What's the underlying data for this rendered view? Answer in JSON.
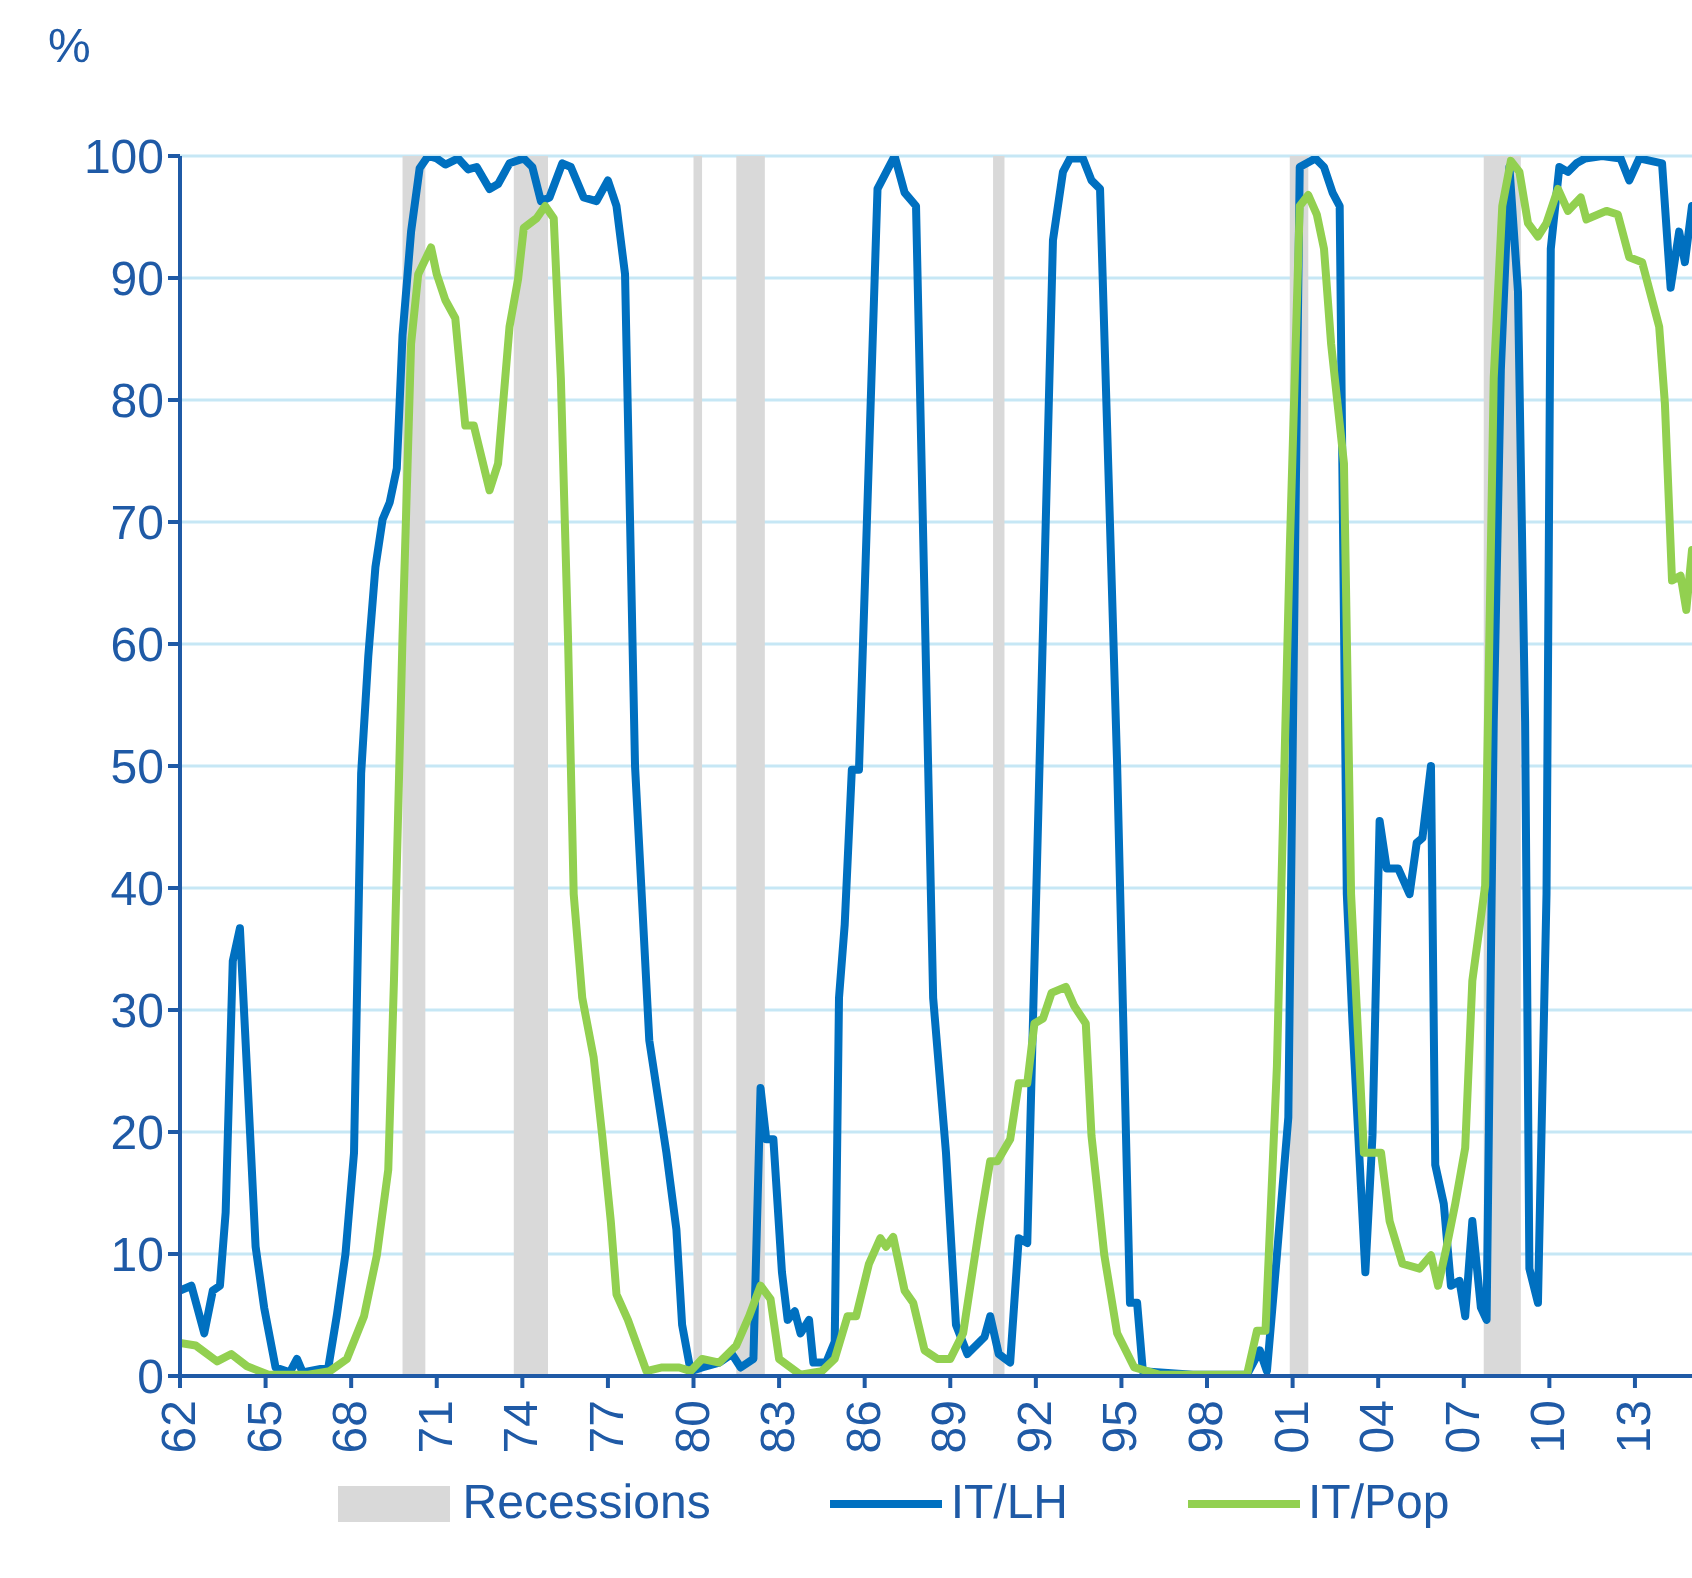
{
  "chart_data": {
    "type": "line",
    "ylabel": "%",
    "xlim": [
      1962,
      2015
    ],
    "xticks": [
      {
        "value": 1962,
        "label": "62"
      },
      {
        "value": 1965,
        "label": "65"
      },
      {
        "value": 1968,
        "label": "68"
      },
      {
        "value": 1971,
        "label": "71"
      },
      {
        "value": 1974,
        "label": "74"
      },
      {
        "value": 1977,
        "label": "77"
      },
      {
        "value": 1980,
        "label": "80"
      },
      {
        "value": 1983,
        "label": "83"
      },
      {
        "value": 1986,
        "label": "86"
      },
      {
        "value": 1989,
        "label": "89"
      },
      {
        "value": 1992,
        "label": "92"
      },
      {
        "value": 1995,
        "label": "95"
      },
      {
        "value": 1998,
        "label": "98"
      },
      {
        "value": 2001,
        "label": "01"
      },
      {
        "value": 2004,
        "label": "04"
      },
      {
        "value": 2007,
        "label": "07"
      },
      {
        "value": 2010,
        "label": "10"
      },
      {
        "value": 2013,
        "label": "13"
      }
    ],
    "ylim": [
      0,
      100
    ],
    "yticks": [
      0,
      10,
      20,
      30,
      40,
      50,
      60,
      70,
      80,
      90,
      100
    ],
    "grid": "y",
    "legend": "bottom",
    "marker": "none",
    "line_style": "solid",
    "bands": [
      {
        "axis": "x",
        "from": 1969.8,
        "to": 1970.6,
        "label": "Recessions",
        "color": "#d9d9d9"
      },
      {
        "axis": "x",
        "from": 1973.7,
        "to": 1974.9,
        "color": "#d9d9d9"
      },
      {
        "axis": "x",
        "from": 1980.0,
        "to": 1980.3,
        "color": "#d9d9d9"
      },
      {
        "axis": "x",
        "from": 1981.5,
        "to": 1982.5,
        "color": "#d9d9d9"
      },
      {
        "axis": "x",
        "from": 1990.5,
        "to": 1990.9,
        "color": "#d9d9d9"
      },
      {
        "axis": "x",
        "from": 2000.9,
        "to": 2001.55,
        "color": "#d9d9d9"
      },
      {
        "axis": "x",
        "from": 2007.7,
        "to": 2009.0,
        "color": "#d9d9d9"
      }
    ],
    "series": [
      {
        "name": "IT/LH",
        "color": "#0070c0",
        "x": [
          1962.0,
          1962.4,
          1962.85,
          1963.15,
          1963.4,
          1963.6,
          1963.85,
          1964.1,
          1964.35,
          1964.65,
          1964.95,
          1965.35,
          1965.85,
          1966.1,
          1966.3,
          1967.2,
          1967.5,
          1967.8,
          1968.1,
          1968.35,
          1968.6,
          1968.85,
          1969.1,
          1969.35,
          1969.6,
          1969.8,
          1970.1,
          1970.4,
          1970.7,
          1971.0,
          1971.3,
          1971.75,
          1972.1,
          1972.4,
          1972.85,
          1973.15,
          1973.55,
          1974.05,
          1974.35,
          1974.65,
          1974.95,
          1975.4,
          1975.7,
          1976.15,
          1976.6,
          1977.0,
          1977.3,
          1977.6,
          1977.95,
          1978.45,
          1979.05,
          1979.4,
          1979.6,
          1979.9,
          1980.3,
          1980.9,
          1981.35,
          1981.65,
          1982.1,
          1982.35,
          1982.55,
          1982.8,
          1983.1,
          1983.3,
          1983.55,
          1983.75,
          1984.05,
          1984.2,
          1984.65,
          1984.95,
          1985.1,
          1985.3,
          1985.55,
          1985.8,
          1986.45,
          1987.05,
          1987.4,
          1987.8,
          1988.4,
          1988.85,
          1989.2,
          1989.6,
          1990.2,
          1990.4,
          1990.7,
          1991.1,
          1991.4,
          1991.7,
          1992.6,
          1992.95,
          1993.2,
          1993.65,
          1993.95,
          1994.25,
          1994.85,
          1995.3,
          1995.55,
          1995.75,
          1997.5,
          1999.4,
          1999.85,
          2000.1,
          2000.45,
          2000.85,
          2001.05,
          2001.25,
          2001.8,
          2002.1,
          2002.4,
          2002.65,
          2002.9,
          2003.1,
          2003.55,
          2003.8,
          2004.05,
          2004.3,
          2004.7,
          2005.1,
          2005.35,
          2005.55,
          2005.85,
          2006.0,
          2006.3,
          2006.55,
          2006.85,
          2007.05,
          2007.3,
          2007.6,
          2007.8,
          2008.05,
          2008.3,
          2008.6,
          2008.9,
          2009.15,
          2009.3,
          2009.6,
          2009.9,
          2010.05,
          2010.35,
          2010.65,
          2010.95,
          2011.25,
          2011.85,
          2012.5,
          2012.8,
          2013.15,
          2013.95,
          2014.25,
          2014.55,
          2014.75,
          2015.0
        ],
        "values": [
          7,
          7.4,
          3.5,
          7,
          7.4,
          13.4,
          34,
          36.7,
          25,
          10.6,
          5.6,
          0.7,
          0.3,
          1.4,
          0.3,
          0.7,
          5,
          10,
          18.3,
          49.4,
          59,
          66.3,
          70.2,
          71.6,
          74.4,
          85.3,
          93.8,
          99,
          100,
          99.8,
          99.3,
          99.8,
          98.9,
          99.1,
          97.3,
          97.7,
          99.4,
          99.8,
          99.1,
          96.3,
          96.6,
          99.4,
          99.1,
          96.6,
          96.3,
          98,
          95.9,
          90.3,
          50,
          27.5,
          18.3,
          12,
          4.2,
          0.4,
          0.7,
          1.1,
          1.8,
          0.7,
          1.4,
          23.6,
          19.4,
          19.4,
          8.5,
          4.6,
          5.3,
          3.5,
          4.6,
          1.1,
          1.1,
          2.8,
          31,
          37,
          49.7,
          49.7,
          97.3,
          100,
          97,
          95.9,
          31,
          18.3,
          4.2,
          1.8,
          3.2,
          4.9,
          1.8,
          1.1,
          11.3,
          10.9,
          93.1,
          98.7,
          99.8,
          99.8,
          98,
          97.3,
          50,
          6,
          6,
          0.4,
          0.1,
          0.1,
          2.1,
          0.4,
          9.9,
          21.2,
          60.6,
          99.1,
          99.8,
          99.1,
          97,
          95.9,
          39.5,
          28.9,
          8.5,
          19.7,
          45.5,
          41.6,
          41.6,
          39.5,
          43.7,
          44.1,
          50,
          17.3,
          14.1,
          7.4,
          7.8,
          4.9,
          12.7,
          5.6,
          4.6,
          53.6,
          82.5,
          99.1,
          88.9,
          53.6,
          8.8,
          6,
          39.5,
          92.4,
          99.1,
          98.7,
          99.4,
          99.8,
          100,
          99.8,
          98,
          99.8,
          99.4,
          89.2,
          93.8,
          91.3,
          95.9
        ]
      },
      {
        "name": "IT/Pop",
        "color": "#92d050",
        "x": [
          1962.0,
          1962.55,
          1963.3,
          1963.8,
          1964.35,
          1965.1,
          1966.5,
          1967.25,
          1967.85,
          1968.45,
          1968.9,
          1969.3,
          1969.5,
          1969.8,
          1970.1,
          1970.35,
          1970.8,
          1971.0,
          1971.3,
          1971.65,
          1972.0,
          1972.3,
          1972.85,
          1973.15,
          1973.55,
          1973.85,
          1974.05,
          1974.5,
          1974.8,
          1975.1,
          1975.35,
          1975.6,
          1975.8,
          1976.1,
          1976.5,
          1976.8,
          1977.1,
          1977.3,
          1977.7,
          1978.35,
          1978.9,
          1979.5,
          1979.9,
          1980.3,
          1980.9,
          1981.5,
          1981.95,
          1982.35,
          1982.7,
          1983.0,
          1983.75,
          1984.5,
          1984.95,
          1985.4,
          1985.7,
          1986.15,
          1986.55,
          1986.75,
          1987.0,
          1987.4,
          1987.7,
          1988.1,
          1988.55,
          1989.0,
          1989.45,
          1990.05,
          1990.4,
          1990.65,
          1991.1,
          1991.4,
          1991.7,
          1991.95,
          1992.25,
          1992.55,
          1993.05,
          1993.35,
          1993.75,
          1993.95,
          1994.4,
          1994.85,
          1995.45,
          1996.35,
          1999.4,
          1999.75,
          2000.05,
          2000.45,
          2000.9,
          2001.25,
          2001.55,
          2001.85,
          2002.1,
          2002.35,
          2002.8,
          2003.05,
          2003.5,
          2003.8,
          2004.1,
          2004.4,
          2004.85,
          2005.45,
          2005.85,
          2006.1,
          2006.4,
          2006.7,
          2007.05,
          2007.3,
          2007.75,
          2008.05,
          2008.35,
          2008.65,
          2008.95,
          2009.25,
          2009.6,
          2009.9,
          2010.3,
          2010.65,
          2011.1,
          2011.3,
          2012.0,
          2012.4,
          2012.8,
          2013.25,
          2013.85,
          2014.05,
          2014.3,
          2014.6,
          2014.8,
          2015.0
        ],
        "values": [
          2.7,
          2.5,
          1.2,
          1.8,
          0.8,
          0.1,
          0.1,
          0.4,
          1.4,
          4.9,
          9.9,
          16.9,
          32.4,
          60.6,
          84.6,
          90.3,
          92.5,
          90.3,
          88.2,
          86.7,
          77.9,
          77.9,
          72.6,
          74.8,
          86,
          89.9,
          94.1,
          94.9,
          95.9,
          94.9,
          81.8,
          60.6,
          39.5,
          31,
          26.1,
          19.7,
          12.7,
          6.7,
          4.6,
          0.4,
          0.7,
          0.7,
          0.4,
          1.4,
          1.1,
          2.5,
          4.9,
          7.4,
          6.3,
          1.4,
          0.1,
          0.4,
          1.4,
          4.9,
          4.9,
          9.2,
          11.3,
          10.6,
          11.4,
          7,
          6,
          2.1,
          1.4,
          1.4,
          3.5,
          12.7,
          17.6,
          17.6,
          19.4,
          24,
          24,
          28.9,
          29.3,
          31.4,
          31.9,
          30.3,
          28.9,
          19.7,
          9.9,
          3.5,
          0.7,
          0.1,
          0.1,
          3.7,
          3.7,
          25.4,
          67.7,
          95.9,
          96.8,
          95.2,
          92.4,
          84.6,
          74.8,
          39.5,
          18.3,
          18.3,
          18.3,
          12.7,
          9.2,
          8.8,
          9.9,
          7.4,
          10.6,
          14.1,
          18.7,
          32.4,
          40.2,
          81.8,
          95.9,
          99.6,
          98.7,
          94.5,
          93.4,
          94.5,
          97.3,
          95.5,
          96.6,
          94.8,
          95.5,
          95.2,
          91.7,
          91.3,
          86,
          79.7,
          65.2,
          65.6,
          62.8,
          67.7
        ]
      }
    ]
  }
}
